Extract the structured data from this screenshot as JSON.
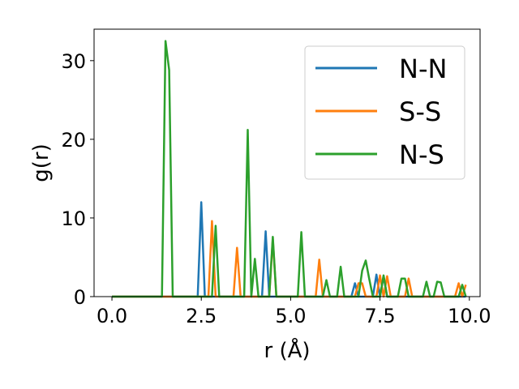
{
  "chart_data": {
    "type": "line",
    "xlabel": "r (Å)",
    "ylabel": "g(r)",
    "xlim": [
      -0.5,
      10.3
    ],
    "ylim": [
      0,
      34
    ],
    "xticks": [
      "0.0",
      "2.5",
      "5.0",
      "7.5",
      "10.0"
    ],
    "yticks": [
      "0",
      "10",
      "20",
      "30"
    ],
    "grid": false,
    "legend_position": "top-right",
    "series": [
      {
        "name": "N-N",
        "color": "#1f77b4",
        "points": [
          [
            0,
            0
          ],
          [
            2.4,
            0
          ],
          [
            2.5,
            12
          ],
          [
            2.6,
            0
          ],
          [
            4.2,
            0
          ],
          [
            4.3,
            8.3
          ],
          [
            4.4,
            0
          ],
          [
            6.7,
            0
          ],
          [
            6.8,
            1.7
          ],
          [
            6.9,
            0
          ],
          [
            7.3,
            0
          ],
          [
            7.4,
            2.8
          ],
          [
            7.5,
            0
          ],
          [
            7.6,
            2.6
          ],
          [
            7.7,
            0
          ],
          [
            9.9,
            0
          ]
        ]
      },
      {
        "name": "S-S",
        "color": "#ff7f0e",
        "points": [
          [
            0,
            0
          ],
          [
            2.7,
            0
          ],
          [
            2.8,
            9.6
          ],
          [
            2.9,
            0
          ],
          [
            3.4,
            0
          ],
          [
            3.5,
            6.2
          ],
          [
            3.6,
            0
          ],
          [
            4.4,
            0
          ],
          [
            4.5,
            7.3
          ],
          [
            4.6,
            0
          ],
          [
            5.7,
            0
          ],
          [
            5.8,
            4.7
          ],
          [
            5.9,
            0
          ],
          [
            6.8,
            0
          ],
          [
            6.9,
            1.7
          ],
          [
            7.0,
            1.7
          ],
          [
            7.1,
            0
          ],
          [
            7.4,
            0
          ],
          [
            7.5,
            2.7
          ],
          [
            7.6,
            0
          ],
          [
            7.7,
            2.6
          ],
          [
            7.8,
            0
          ],
          [
            8.2,
            0
          ],
          [
            8.3,
            2.3
          ],
          [
            8.4,
            0
          ],
          [
            9.6,
            0
          ],
          [
            9.7,
            1.7
          ],
          [
            9.8,
            0
          ],
          [
            9.9,
            1.5
          ]
        ]
      },
      {
        "name": "N-S",
        "color": "#2ca02c",
        "points": [
          [
            0,
            0
          ],
          [
            1.4,
            0
          ],
          [
            1.5,
            32.5
          ],
          [
            1.6,
            28.8
          ],
          [
            1.7,
            0
          ],
          [
            2.8,
            0
          ],
          [
            2.9,
            9
          ],
          [
            3.0,
            0
          ],
          [
            3.7,
            0
          ],
          [
            3.8,
            21.2
          ],
          [
            3.9,
            0
          ],
          [
            4.0,
            4.8
          ],
          [
            4.1,
            0
          ],
          [
            4.4,
            0
          ],
          [
            4.5,
            7.6
          ],
          [
            4.6,
            0
          ],
          [
            5.2,
            0
          ],
          [
            5.3,
            8.2
          ],
          [
            5.4,
            0
          ],
          [
            5.9,
            0
          ],
          [
            6.0,
            2.1
          ],
          [
            6.1,
            0
          ],
          [
            6.3,
            0
          ],
          [
            6.4,
            3.8
          ],
          [
            6.5,
            0
          ],
          [
            6.9,
            0
          ],
          [
            7.0,
            3.3
          ],
          [
            7.1,
            4.6
          ],
          [
            7.2,
            2.2
          ],
          [
            7.3,
            0
          ],
          [
            7.5,
            0
          ],
          [
            7.6,
            2.7
          ],
          [
            7.7,
            0
          ],
          [
            8.0,
            0
          ],
          [
            8.1,
            2.3
          ],
          [
            8.2,
            2.3
          ],
          [
            8.3,
            0
          ],
          [
            8.7,
            0
          ],
          [
            8.8,
            1.9
          ],
          [
            8.9,
            0
          ],
          [
            9.0,
            0
          ],
          [
            9.1,
            1.9
          ],
          [
            9.2,
            1.8
          ],
          [
            9.3,
            0
          ],
          [
            9.7,
            0
          ],
          [
            9.8,
            1.5
          ],
          [
            9.9,
            0
          ]
        ]
      }
    ]
  }
}
